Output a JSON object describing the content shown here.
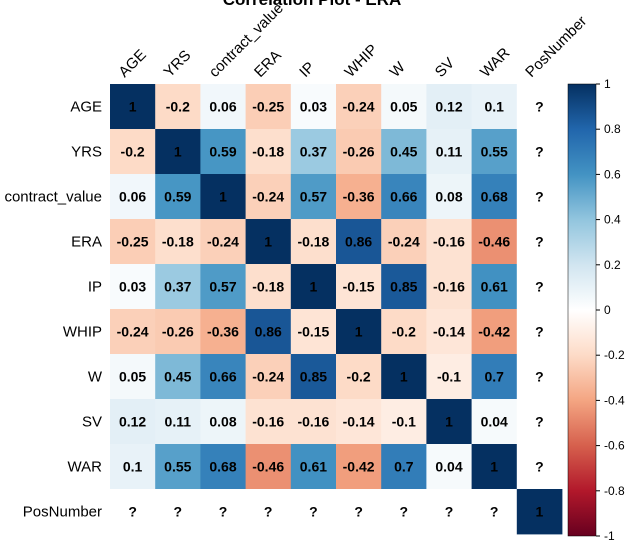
{
  "chart_data": {
    "type": "heatmap",
    "title": "Correlation Plot - ERA",
    "rows": [
      "AGE",
      "YRS",
      "contract_value",
      "ERA",
      "IP",
      "WHIP",
      "W",
      "SV",
      "WAR",
      "PosNumber"
    ],
    "columns": [
      "AGE",
      "YRS",
      "contract_value",
      "ERA",
      "IP",
      "WHIP",
      "W",
      "SV",
      "WAR",
      "PosNumber"
    ],
    "values": [
      [
        "1",
        "-0.2",
        "0.06",
        "-0.25",
        "0.03",
        "-0.24",
        "0.05",
        "0.12",
        "0.1",
        "?"
      ],
      [
        "-0.2",
        "1",
        "0.59",
        "-0.18",
        "0.37",
        "-0.26",
        "0.45",
        "0.11",
        "0.55",
        "?"
      ],
      [
        "0.06",
        "0.59",
        "1",
        "-0.24",
        "0.57",
        "-0.36",
        "0.66",
        "0.08",
        "0.68",
        "?"
      ],
      [
        "-0.25",
        "-0.18",
        "-0.24",
        "1",
        "-0.18",
        "0.86",
        "-0.24",
        "-0.16",
        "-0.46",
        "?"
      ],
      [
        "0.03",
        "0.37",
        "0.57",
        "-0.18",
        "1",
        "-0.15",
        "0.85",
        "-0.16",
        "0.61",
        "?"
      ],
      [
        "-0.24",
        "-0.26",
        "-0.36",
        "0.86",
        "-0.15",
        "1",
        "-0.2",
        "-0.14",
        "-0.42",
        "?"
      ],
      [
        "0.05",
        "0.45",
        "0.66",
        "-0.24",
        "0.85",
        "-0.2",
        "1",
        "-0.1",
        "0.7",
        "?"
      ],
      [
        "0.12",
        "0.11",
        "0.08",
        "-0.16",
        "-0.16",
        "-0.14",
        "-0.1",
        "1",
        "0.04",
        "?"
      ],
      [
        "0.1",
        "0.55",
        "0.68",
        "-0.46",
        "0.61",
        "-0.42",
        "0.7",
        "0.04",
        "1",
        "?"
      ],
      [
        "?",
        "?",
        "?",
        "?",
        "?",
        "?",
        "?",
        "?",
        "?",
        "1"
      ]
    ],
    "colorbar": {
      "range": [
        -1,
        1
      ],
      "ticks": [
        "1",
        "0.8",
        "0.6",
        "0.4",
        "0.2",
        "0",
        "-0.2",
        "-0.4",
        "-0.6",
        "-0.8",
        "-1"
      ],
      "colors": [
        "#67001F",
        "#B2182B",
        "#D6604D",
        "#F4A582",
        "#FDDBC7",
        "#FFFFFF",
        "#D1E5F0",
        "#92C5DE",
        "#4393C3",
        "#2166AC",
        "#053061"
      ]
    },
    "missing_color": "#FFFFFF"
  }
}
